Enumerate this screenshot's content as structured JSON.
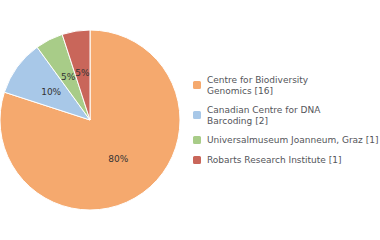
{
  "chart_data": {
    "type": "pie",
    "categories": [
      "Centre for Biodiversity\nGenomics [16]",
      "Canadian Centre for DNA\nBarcoding [2]",
      "Universalmuseum Joanneum, Graz [1]",
      "Robarts Research Institute [1]"
    ],
    "values": [
      80,
      10,
      5,
      5
    ],
    "value_labels": [
      "80%",
      "10%",
      "5%",
      "5%"
    ],
    "colors": [
      "#F5A96E",
      "#A8C8E8",
      "#A8CC88",
      "#C9665A"
    ],
    "data_labels": true,
    "legend": "right"
  }
}
